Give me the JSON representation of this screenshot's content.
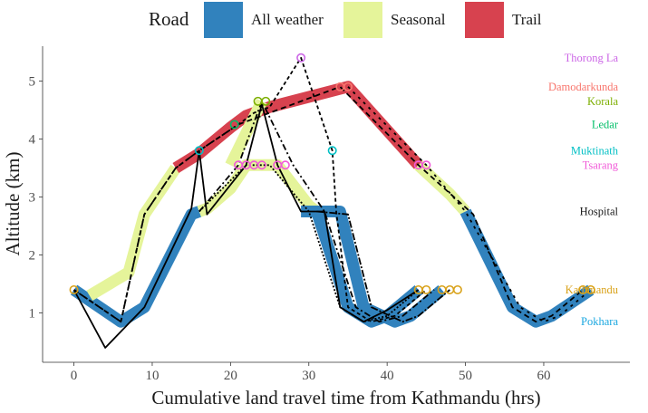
{
  "chart_data": {
    "type": "line",
    "xlabel": "Cumulative land travel time from Kathmandu (hrs)",
    "ylabel": "Altitude (km)",
    "xlim": [
      -4,
      71
    ],
    "ylim": [
      0.15,
      5.6
    ],
    "x_ticks": [
      0,
      10,
      20,
      30,
      40,
      50,
      60
    ],
    "y_ticks": [
      1,
      2,
      3,
      4,
      5
    ],
    "grid": false,
    "legend": {
      "title": "Road",
      "position": "top",
      "items": [
        {
          "label": "All weather",
          "color": "#3182bd"
        },
        {
          "label": "Seasonal",
          "color": "#e5f49a"
        },
        {
          "label": "Trail",
          "color": "#d7424f"
        }
      ]
    },
    "road_colors": {
      "all_weather": "#3182bd",
      "seasonal": "#e5f49a",
      "trail": "#d7424f"
    },
    "bands": [
      {
        "road": "all_weather",
        "points": [
          [
            0,
            1.4
          ],
          [
            6,
            0.85
          ],
          [
            9,
            1.1
          ],
          [
            15,
            2.7
          ],
          [
            16,
            2.75
          ]
        ]
      },
      {
        "road": "seasonal",
        "points": [
          [
            16,
            2.75
          ],
          [
            17,
            2.8
          ],
          [
            20,
            3.15
          ],
          [
            22,
            3.55
          ],
          [
            26,
            3.55
          ],
          [
            30,
            2.85
          ],
          [
            31,
            2.75
          ]
        ]
      },
      {
        "road": "all_weather",
        "points": [
          [
            31,
            2.75
          ],
          [
            35,
            1.1
          ],
          [
            38,
            0.85
          ],
          [
            40,
            0.95
          ],
          [
            44,
            1.4
          ]
        ]
      },
      {
        "road": "seasonal",
        "points": [
          [
            2,
            1.3
          ],
          [
            7,
            1.7
          ],
          [
            9,
            2.7
          ],
          [
            13,
            3.5
          ]
        ]
      },
      {
        "road": "trail",
        "points": [
          [
            13,
            3.5
          ],
          [
            16,
            3.75
          ],
          [
            20,
            4.2
          ],
          [
            22,
            4.4
          ],
          [
            25,
            4.55
          ],
          [
            35,
            4.9
          ],
          [
            44,
            3.55
          ]
        ]
      },
      {
        "road": "seasonal",
        "points": [
          [
            44,
            3.55
          ],
          [
            48,
            3.05
          ],
          [
            50,
            2.75
          ]
        ]
      },
      {
        "road": "all_weather",
        "points": [
          [
            50,
            2.75
          ],
          [
            56,
            1.1
          ],
          [
            59,
            0.85
          ],
          [
            61,
            0.95
          ],
          [
            66,
            1.4
          ]
        ]
      },
      {
        "road": "all_weather",
        "points": [
          [
            29,
            2.75
          ],
          [
            34,
            2.75
          ],
          [
            37,
            1.1
          ],
          [
            41,
            0.85
          ],
          [
            43,
            0.95
          ],
          [
            47,
            1.4
          ]
        ]
      },
      {
        "road": "seasonal",
        "points": [
          [
            20,
            3.55
          ],
          [
            24,
            4.65
          ]
        ]
      }
    ],
    "routes": [
      {
        "dash": "none",
        "points": [
          [
            0,
            1.4
          ],
          [
            4,
            0.4
          ],
          [
            9,
            1.1
          ],
          [
            15,
            2.8
          ],
          [
            16,
            3.8
          ],
          [
            17,
            2.7
          ],
          [
            22,
            3.55
          ],
          [
            24,
            4.6
          ],
          [
            26,
            3.55
          ],
          [
            29,
            2.75
          ],
          [
            32,
            2.75
          ],
          [
            34,
            1.1
          ],
          [
            37,
            0.85
          ],
          [
            40,
            1.05
          ],
          [
            44,
            1.4
          ]
        ]
      },
      {
        "dash": "4 3",
        "points": [
          [
            0,
            1.4
          ],
          [
            6,
            0.85
          ],
          [
            9,
            2.7
          ],
          [
            13,
            3.5
          ],
          [
            16,
            3.8
          ],
          [
            21,
            4.25
          ],
          [
            23,
            4.45
          ],
          [
            25,
            4.55
          ],
          [
            29,
            5.4
          ],
          [
            33,
            3.8
          ],
          [
            33.5,
            2.75
          ],
          [
            35,
            1.1
          ],
          [
            38,
            0.85
          ],
          [
            41,
            0.95
          ],
          [
            45,
            1.4
          ]
        ]
      },
      {
        "dash": "6 4",
        "points": [
          [
            0,
            1.4
          ],
          [
            6,
            0.85
          ],
          [
            9,
            2.7
          ],
          [
            13,
            3.5
          ],
          [
            16,
            3.8
          ],
          [
            21,
            4.25
          ],
          [
            34,
            4.9
          ],
          [
            44,
            3.55
          ],
          [
            51,
            2.7
          ],
          [
            56,
            1.1
          ],
          [
            59,
            0.85
          ],
          [
            61,
            0.95
          ],
          [
            65,
            1.4
          ]
        ]
      },
      {
        "dash": "7 3 2 3",
        "points": [
          [
            16,
            2.75
          ],
          [
            21,
            3.55
          ],
          [
            24,
            4.65
          ],
          [
            28,
            3.55
          ],
          [
            32,
            2.75
          ],
          [
            36,
            1.1
          ],
          [
            39,
            0.85
          ],
          [
            42,
            0.95
          ],
          [
            46,
            1.4
          ]
        ]
      },
      {
        "dash": "2 2",
        "points": [
          [
            16,
            2.75
          ],
          [
            22,
            3.55
          ],
          [
            25,
            3.55
          ],
          [
            30,
            2.75
          ],
          [
            34,
            1.1
          ],
          [
            37,
            0.85
          ],
          [
            40,
            0.95
          ],
          [
            44,
            1.4
          ]
        ]
      },
      {
        "dash": "8 2 2 2",
        "points": [
          [
            31,
            2.75
          ],
          [
            35,
            2.7
          ],
          [
            38,
            1.1
          ],
          [
            42,
            0.85
          ],
          [
            44,
            0.95
          ],
          [
            48,
            1.4
          ]
        ]
      },
      {
        "dash": "3 5",
        "points": [
          [
            35,
            4.9
          ],
          [
            45,
            3.55
          ],
          [
            50,
            2.75
          ],
          [
            57,
            1.1
          ],
          [
            60,
            0.85
          ],
          [
            62,
            0.95
          ],
          [
            66,
            1.4
          ]
        ]
      }
    ],
    "places": [
      {
        "name": "Thorong La",
        "altitude": 5.4,
        "color": "#cc66e6"
      },
      {
        "name": "Damodarkunda",
        "altitude": 4.9,
        "color": "#f8766d"
      },
      {
        "name": "Korala",
        "altitude": 4.65,
        "color": "#7cae00"
      },
      {
        "name": "Ledar",
        "altitude": 4.25,
        "color": "#00be67"
      },
      {
        "name": "Muktinath",
        "altitude": 3.8,
        "color": "#00bfc4"
      },
      {
        "name": "Tsarang",
        "altitude": 3.55,
        "color": "#f15ad8"
      },
      {
        "name": "Hospital",
        "altitude": 2.75,
        "color": "#1a1a1a"
      },
      {
        "name": "Kathmandu",
        "altitude": 1.4,
        "color": "#d9a21a"
      },
      {
        "name": "Pokhara",
        "altitude": 0.85,
        "color": "#1aa7e0"
      }
    ],
    "markers": [
      {
        "place": "Thorong La",
        "x": 29,
        "y": 5.4
      },
      {
        "place": "Damodarkunda",
        "x": 34,
        "y": 4.9
      },
      {
        "place": "Damodarkunda",
        "x": 35,
        "y": 4.9
      },
      {
        "place": "Korala",
        "x": 23.5,
        "y": 4.65
      },
      {
        "place": "Korala",
        "x": 24.5,
        "y": 4.65
      },
      {
        "place": "Ledar",
        "x": 20.5,
        "y": 4.25
      },
      {
        "place": "Muktinath",
        "x": 16,
        "y": 3.8
      },
      {
        "place": "Muktinath",
        "x": 33,
        "y": 3.8
      },
      {
        "place": "Tsarang",
        "x": 21,
        "y": 3.55
      },
      {
        "place": "Tsarang",
        "x": 22,
        "y": 3.55
      },
      {
        "place": "Tsarang",
        "x": 23,
        "y": 3.55
      },
      {
        "place": "Tsarang",
        "x": 24,
        "y": 3.55
      },
      {
        "place": "Tsarang",
        "x": 26,
        "y": 3.55
      },
      {
        "place": "Tsarang",
        "x": 27,
        "y": 3.55
      },
      {
        "place": "Tsarang",
        "x": 44,
        "y": 3.55
      },
      {
        "place": "Tsarang",
        "x": 45,
        "y": 3.55
      },
      {
        "place": "Kathmandu",
        "x": 0,
        "y": 1.4
      },
      {
        "place": "Kathmandu",
        "x": 44,
        "y": 1.4
      },
      {
        "place": "Kathmandu",
        "x": 45,
        "y": 1.4
      },
      {
        "place": "Kathmandu",
        "x": 47,
        "y": 1.4
      },
      {
        "place": "Kathmandu",
        "x": 48,
        "y": 1.4
      },
      {
        "place": "Kathmandu",
        "x": 49,
        "y": 1.4
      },
      {
        "place": "Kathmandu",
        "x": 65,
        "y": 1.4
      },
      {
        "place": "Kathmandu",
        "x": 66,
        "y": 1.4
      }
    ]
  }
}
